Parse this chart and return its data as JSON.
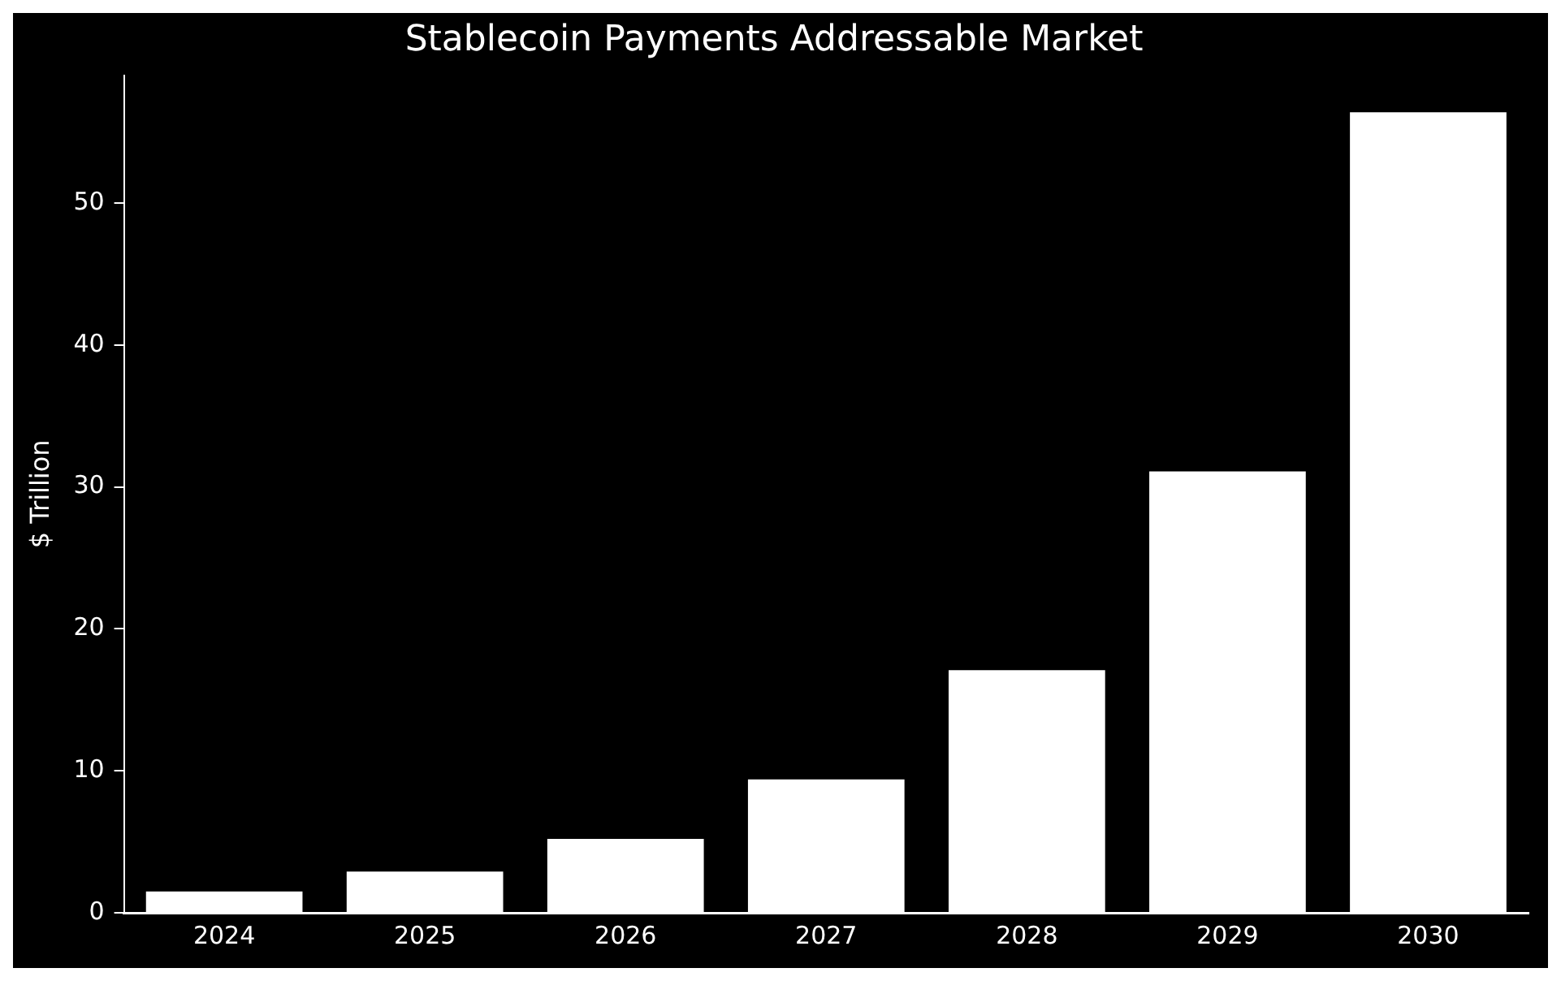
{
  "chart_data": {
    "type": "bar",
    "title": "Stablecoin Payments Addressable Market",
    "ylabel": "$ Trillion",
    "categories": [
      "2024",
      "2025",
      "2026",
      "2027",
      "2028",
      "2029",
      "2030"
    ],
    "values": [
      1.5,
      2.9,
      5.2,
      9.4,
      17.1,
      31.1,
      56.4
    ],
    "color": "#ffffff",
    "ylim": [
      0,
      59
    ],
    "yticks": [
      0,
      10,
      20,
      30,
      40,
      50
    ],
    "grid": false,
    "legend": false
  }
}
